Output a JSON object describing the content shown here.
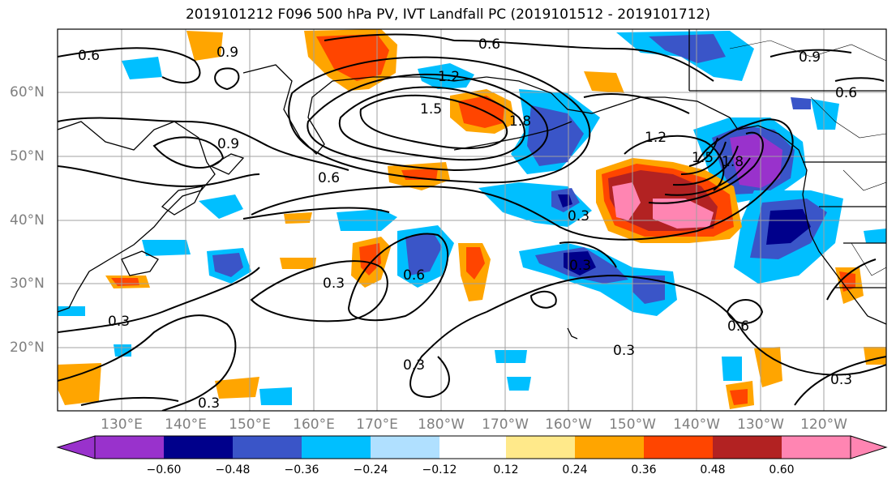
{
  "title": "2019101212 F096 500 hPa PV, IVT Landfall PC (2019101512 - 2019101712)",
  "lat_labels": [
    "60°N",
    "50°N",
    "40°N",
    "30°N",
    "20°N"
  ],
  "lon_labels": [
    "130°E",
    "140°E",
    "150°E",
    "160°E",
    "170°E",
    "180°W",
    "170°W",
    "160°W",
    "150°W",
    "140°W",
    "130°W",
    "120°W"
  ],
  "contour_labels": [
    "0.6",
    "0.9",
    "0.9",
    "0.6",
    "1.2",
    "1.5",
    "1.8",
    "1.5",
    "1.8",
    "1.2",
    "0.6",
    "0.3",
    "0.3",
    "0.6",
    "0.3",
    "0.3",
    "0.3",
    "0.6",
    "0.3",
    "0.3",
    "0.3",
    "0.9",
    "0.6"
  ],
  "colorbar": {
    "ticks": [
      "−0.60",
      "−0.48",
      "−0.36",
      "−0.24",
      "−0.12",
      "0.12",
      "0.24",
      "0.36",
      "0.48",
      "0.60"
    ],
    "colors": [
      "#9932cc",
      "#00008b",
      "#3a55c8",
      "#00bfff",
      "#b0e0ff",
      "#ffffff",
      "#ffe98a",
      "#ffa500",
      "#ff4500",
      "#b22222",
      "#ff85b2",
      "#ff85b2"
    ]
  },
  "colors": {
    "land_line": "#000000",
    "grid": "#a0a0a0",
    "axis_label": "#7f7f7f"
  }
}
